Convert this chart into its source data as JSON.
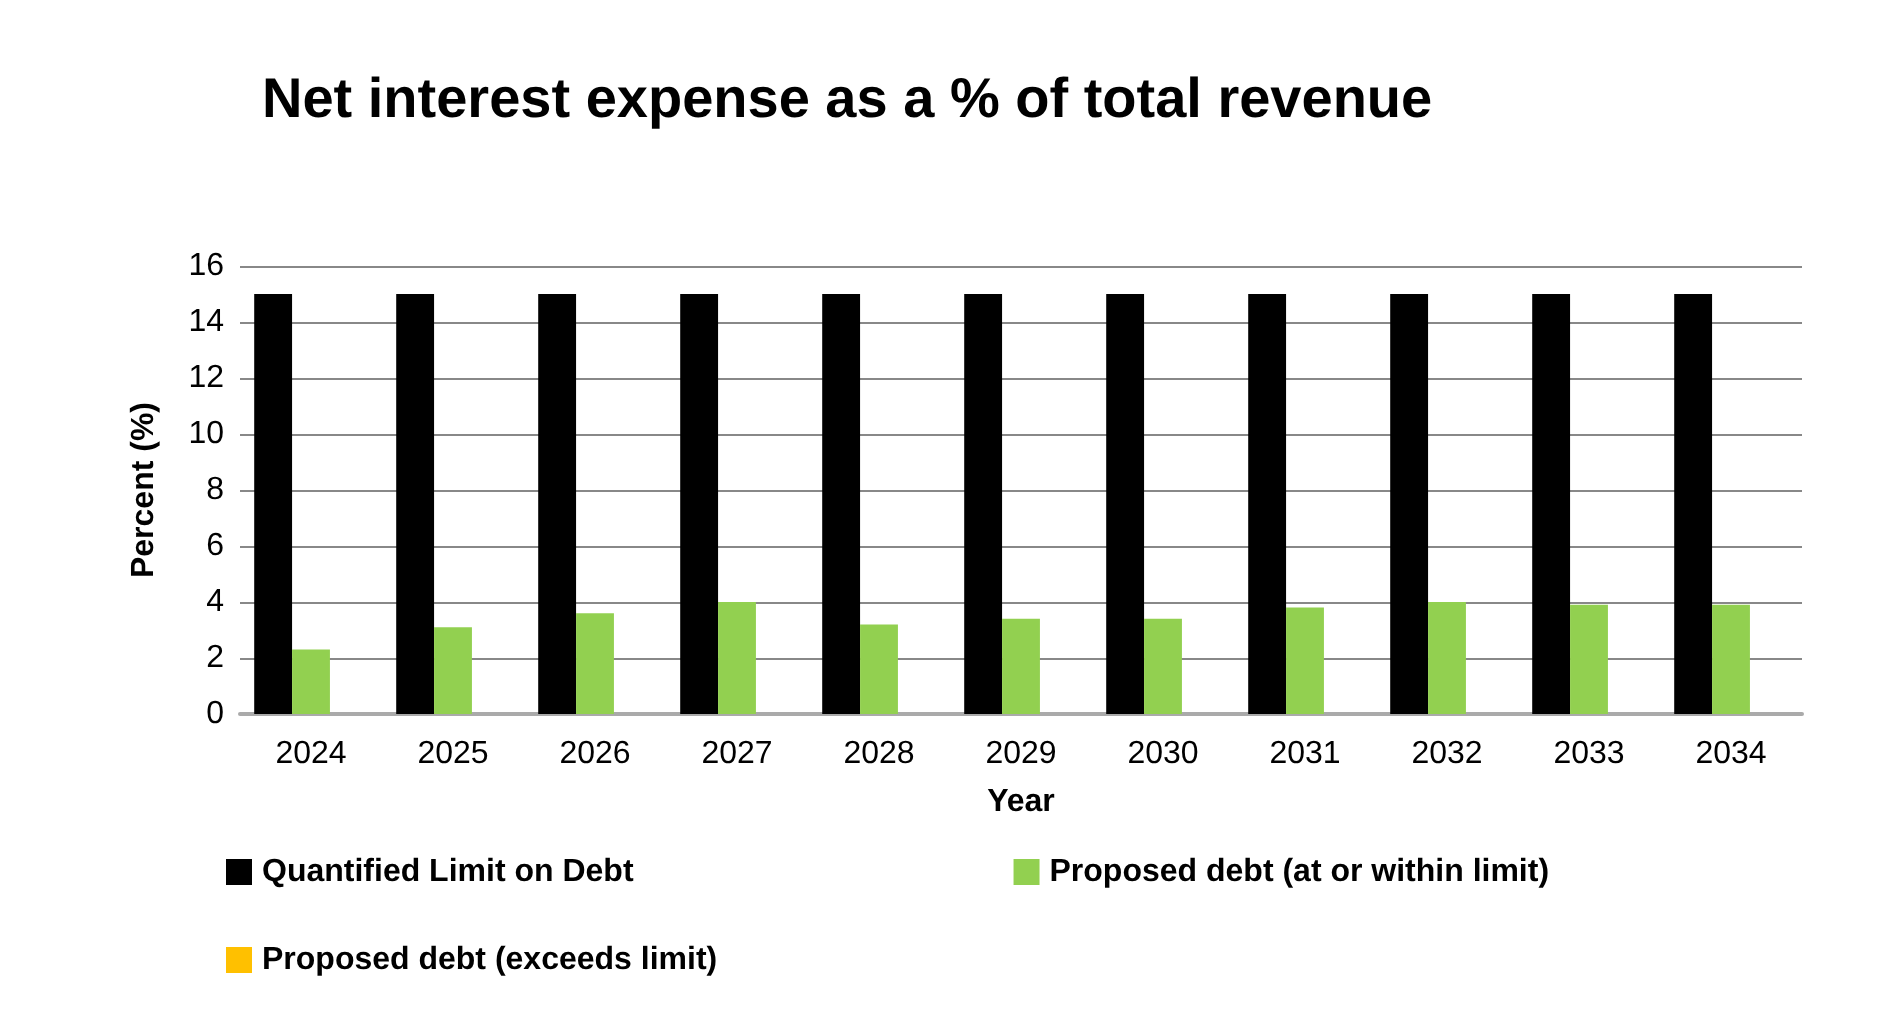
{
  "chart_data": {
    "type": "bar",
    "title": "Net interest expense as a % of total revenue",
    "xlabel": "Year",
    "ylabel": "Percent (%)",
    "categories": [
      "2024",
      "2025",
      "2026",
      "2027",
      "2028",
      "2029",
      "2030",
      "2031",
      "2032",
      "2033",
      "2034"
    ],
    "series": [
      {
        "name": "Quantified Limit on Debt",
        "color": "#000000",
        "values": [
          15,
          15,
          15,
          15,
          15,
          15,
          15,
          15,
          15,
          15,
          15
        ]
      },
      {
        "name": "Proposed debt (at or within limit)",
        "color": "#92d050",
        "values": [
          2.3,
          3.1,
          3.6,
          4.0,
          3.2,
          3.4,
          3.4,
          3.8,
          4.0,
          3.9,
          3.9
        ]
      },
      {
        "name": "Proposed debt (exceeds limit)",
        "color": "#ffc000",
        "values": [
          null,
          null,
          null,
          null,
          null,
          null,
          null,
          null,
          null,
          null,
          null
        ]
      }
    ],
    "ylim": [
      0,
      16
    ],
    "yticks": [
      0,
      2,
      4,
      6,
      8,
      10,
      12,
      14,
      16
    ],
    "grid": "y",
    "legend": "bottom"
  }
}
